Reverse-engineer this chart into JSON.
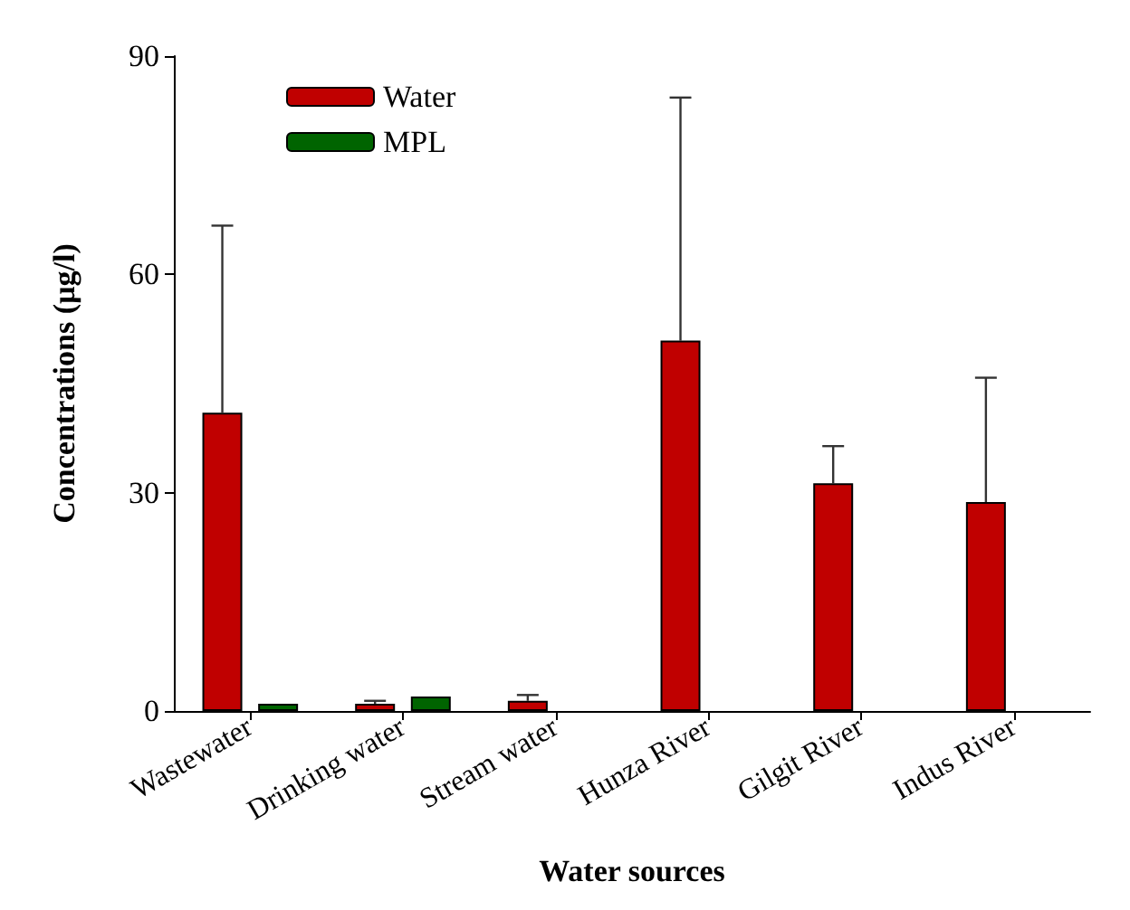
{
  "chart_data": {
    "type": "bar",
    "xlabel": "Water sources",
    "ylabel": "Concentrations (µg/l)",
    "categories": [
      "Wastewater",
      "Drinking water",
      "Stream water",
      "Hunza River",
      "Gilgit River",
      "Indus River"
    ],
    "series": [
      {
        "name": "Water",
        "color": "#c00000",
        "values": [
          41,
          1.0,
          1.4,
          50.9,
          31.3,
          28.7
        ],
        "errors": [
          [
            41,
            66.7
          ],
          [
            1.0,
            1.4
          ],
          [
            1.4,
            2.2
          ],
          [
            50.9,
            84.3
          ],
          [
            31.3,
            36.4
          ],
          [
            28.7,
            45.8
          ]
        ]
      },
      {
        "name": "MPL",
        "color": "#006400",
        "values": [
          1.0,
          2.0,
          null,
          null,
          null,
          null
        ]
      }
    ],
    "ylim": [
      0,
      90
    ],
    "yticks": [
      0,
      30,
      60,
      90
    ],
    "grid": false,
    "legend": "top left"
  }
}
